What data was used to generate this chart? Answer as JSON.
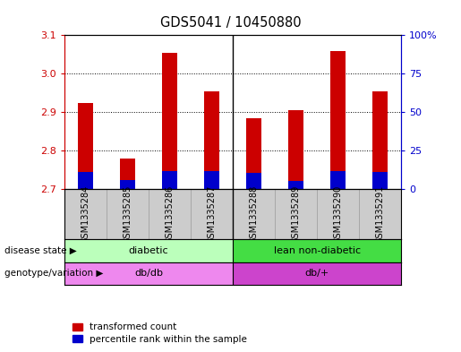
{
  "title": "GDS5041 / 10450880",
  "samples": [
    "GSM1335284",
    "GSM1335285",
    "GSM1335286",
    "GSM1335287",
    "GSM1335288",
    "GSM1335289",
    "GSM1335290",
    "GSM1335291"
  ],
  "transformed_count": [
    2.925,
    2.78,
    3.055,
    2.955,
    2.885,
    2.905,
    3.06,
    2.955
  ],
  "percentile_rank": [
    2.745,
    2.725,
    2.748,
    2.748,
    2.743,
    2.722,
    2.748,
    2.745
  ],
  "bar_base": 2.7,
  "ylim_left": [
    2.7,
    3.1
  ],
  "ylim_right": [
    0,
    100
  ],
  "yticks_left": [
    2.7,
    2.8,
    2.9,
    3.0,
    3.1
  ],
  "yticks_right": [
    0,
    25,
    50,
    75,
    100
  ],
  "ytick_right_labels": [
    "0",
    "25",
    "50",
    "75",
    "100%"
  ],
  "red_color": "#cc0000",
  "blue_color": "#0000cc",
  "disease_state_labels": [
    "diabetic",
    "lean non-diabetic"
  ],
  "disease_state_colors": [
    "#bbffbb",
    "#44dd44"
  ],
  "disease_state_split": 4,
  "genotype_labels": [
    "db/db",
    "db/+"
  ],
  "genotype_colors": [
    "#ee88ee",
    "#cc44cc"
  ],
  "genotype_split": 4,
  "legend_labels": [
    "transformed count",
    "percentile rank within the sample"
  ],
  "disease_state_row_label": "disease state",
  "genotype_row_label": "genotype/variation",
  "sample_bg_color": "#cccccc",
  "plot_bg_color": "#ffffff",
  "bar_width": 0.35
}
